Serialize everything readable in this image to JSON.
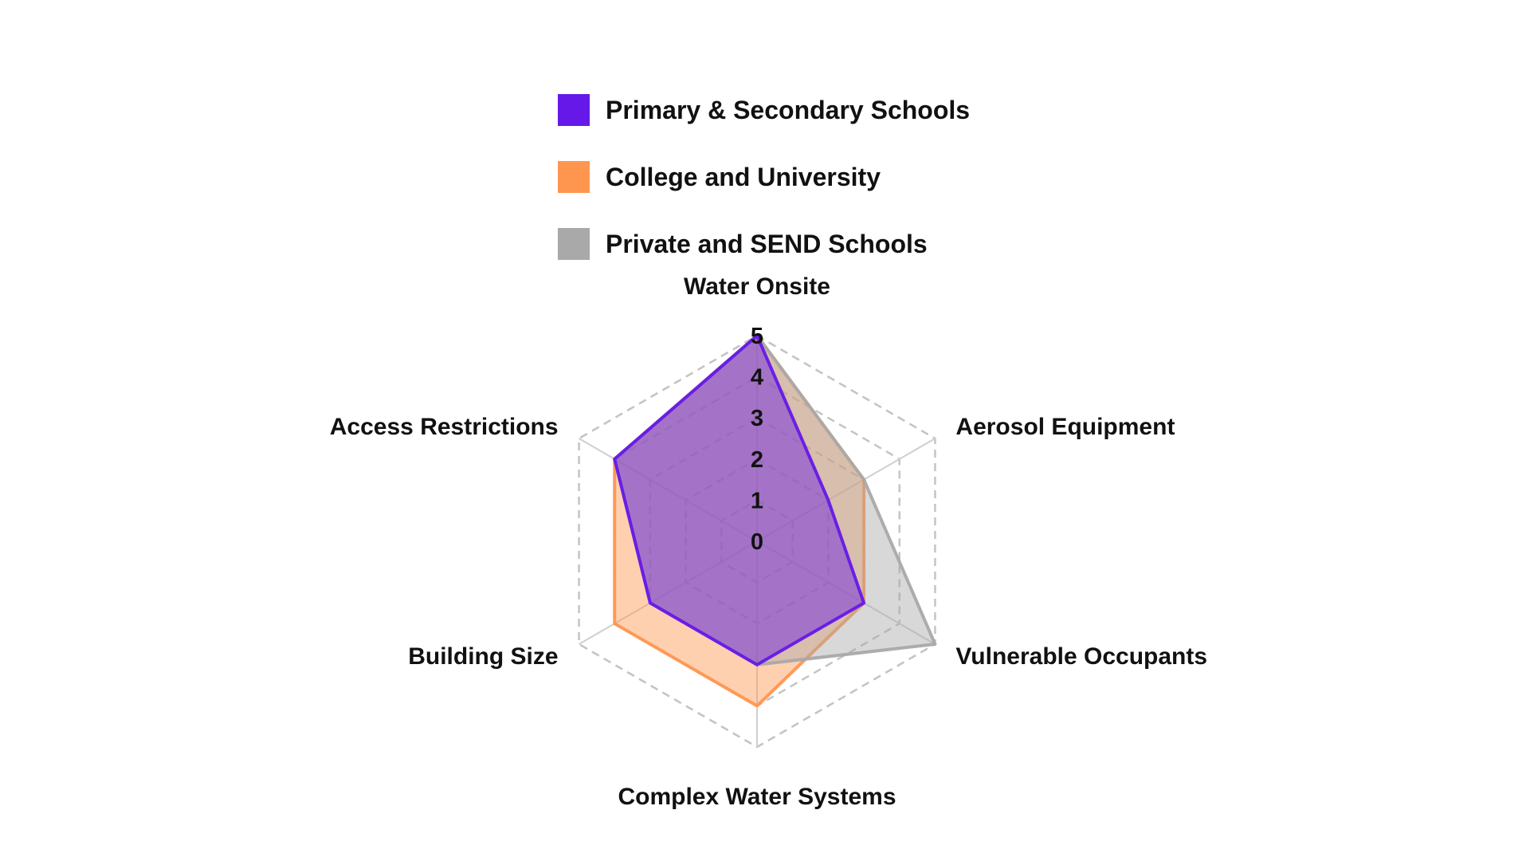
{
  "chart_data": {
    "type": "radar",
    "axes": [
      "Water Onsite",
      "Aerosol Equipment",
      "Vulnerable Occupants",
      "Complex Water Systems",
      "Building Size",
      "Access Restrictions"
    ],
    "scale_ticks": [
      "0",
      "1",
      "2",
      "3",
      "4",
      "5"
    ],
    "r_range": [
      0,
      5
    ],
    "grid": true,
    "legend_position": "top",
    "series": [
      {
        "name": "College and University",
        "values": [
          5,
          3,
          3,
          4,
          4,
          4
        ],
        "color": "#ff9650"
      },
      {
        "name": "Private and SEND Schools",
        "values": [
          5,
          3,
          5,
          3,
          3,
          4
        ],
        "color": "#a9a9a9"
      },
      {
        "name": "Primary & Secondary Schools",
        "values": [
          5,
          2,
          3,
          3,
          3,
          4
        ],
        "color": "#6618e8"
      }
    ],
    "legend": [
      {
        "label": "Primary & Secondary Schools",
        "color": "#6618e8"
      },
      {
        "label": "College and University",
        "color": "#ff9650"
      },
      {
        "label": "Private and SEND Schools",
        "color": "#a9a9a9"
      }
    ]
  }
}
